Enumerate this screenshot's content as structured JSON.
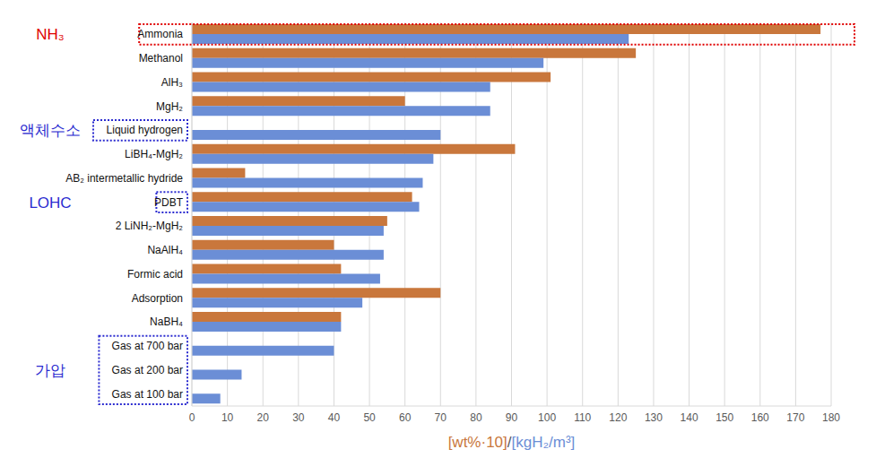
{
  "chart_data": {
    "type": "bar",
    "orientation": "horizontal",
    "x_label": "[wt%·10]/[kgH₂/m³]",
    "categories": [
      "Ammonia",
      "Methanol",
      "AlH₃",
      "MgH₂",
      "Liquid hydrogen",
      "LiBH₄-MgH₂",
      "AB₂ intermetallic hydride",
      "PDBT",
      "2 LiNH₂-MgH₂",
      "NaAlH₄",
      "Formic acid",
      "Adsorption",
      "NaBH₄",
      "Gas at 700 bar",
      "Gas at 200 bar",
      "Gas at 100 bar"
    ],
    "series": [
      {
        "name": "[wt%·10]",
        "color": "#c9773c",
        "values": [
          177,
          125,
          101,
          60,
          null,
          91,
          15,
          62,
          55,
          40,
          42,
          70,
          42,
          null,
          null,
          null
        ]
      },
      {
        "name": "[kgH₂/m³]",
        "color": "#6b8ed6",
        "values": [
          123,
          99,
          84,
          84,
          70,
          68,
          65,
          64,
          54,
          54,
          53,
          48,
          42,
          40,
          14,
          8
        ]
      }
    ],
    "xlim": [
      0,
      180
    ],
    "xticks": [
      0,
      10,
      20,
      30,
      40,
      50,
      60,
      70,
      80,
      90,
      100,
      110,
      120,
      130,
      140,
      150,
      160,
      170,
      180
    ],
    "grid": true,
    "annotations": [
      {
        "text": "NH₃",
        "categories": [
          "Ammonia"
        ]
      },
      {
        "text": "액체수소",
        "categories": [
          "Liquid hydrogen"
        ]
      },
      {
        "text": "LOHC",
        "categories": [
          "PDBT"
        ]
      },
      {
        "text": "가압",
        "categories": [
          "Gas at 700 bar",
          "Gas at 200 bar",
          "Gas at 100 bar"
        ]
      }
    ]
  }
}
